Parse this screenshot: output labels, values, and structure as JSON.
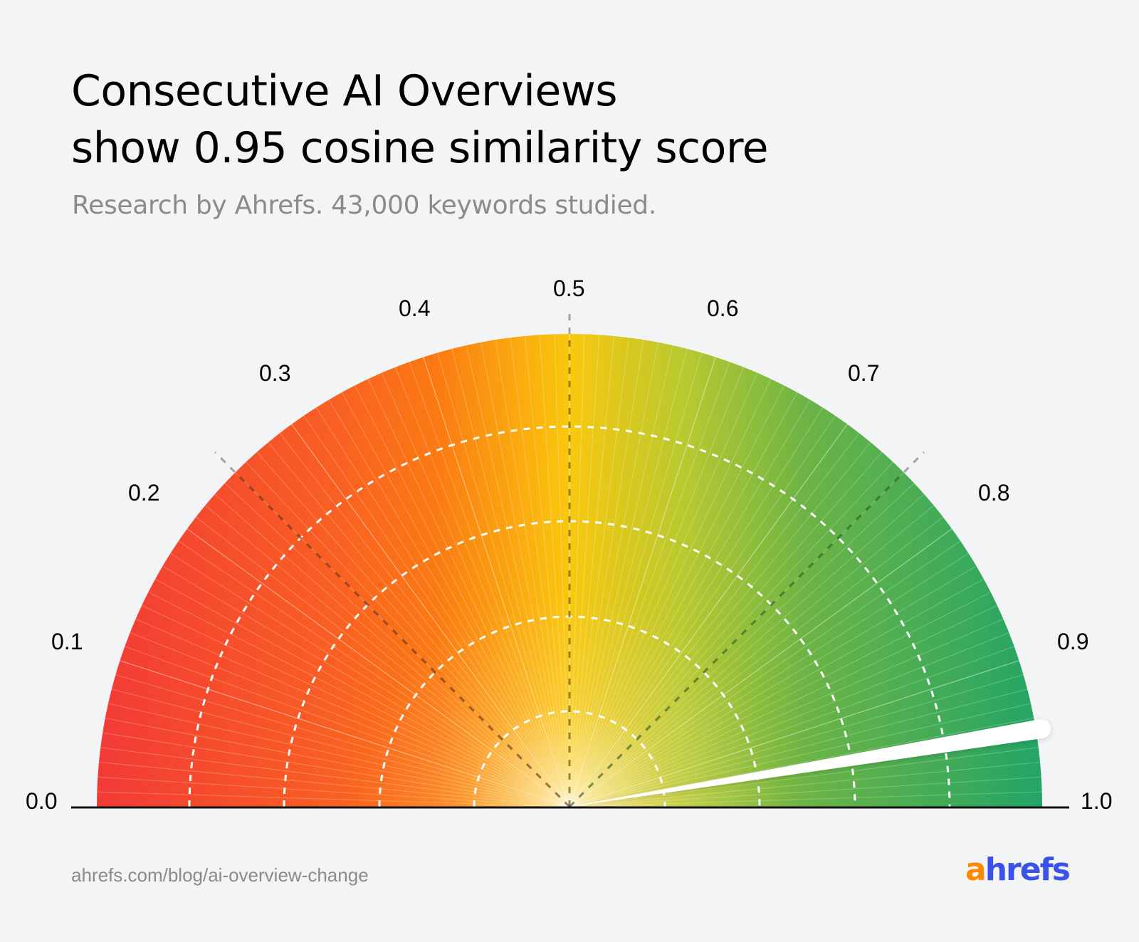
{
  "header": {
    "title_line1": "Consecutive AI Overviews",
    "title_line2": "show 0.95 cosine similarity score",
    "subtitle": "Research by Ahrefs. 43,000 keywords studied."
  },
  "footer": {
    "url": "ahrefs.com/blog/ai-overview-change",
    "logo_first": "a",
    "logo_rest": "hrefs"
  },
  "colors": {
    "background": "#f3f4f6",
    "gauge_start": "#f23a36",
    "gauge_orange": "#fb7a12",
    "gauge_yellow": "#f9c80e",
    "gauge_lime": "#8fc13c",
    "gauge_end": "#22a566",
    "needle": "#ffffff",
    "logo_orange": "#ff8800",
    "logo_blue": "#3b52e8"
  },
  "chart_data": {
    "type": "gauge",
    "title": "Consecutive AI Overviews show 0.95 cosine similarity score",
    "subtitle": "Research by Ahrefs. 43,000 keywords studied.",
    "min": 0.0,
    "max": 1.0,
    "value": 0.95,
    "tick_labels": [
      "0.0",
      "0.1",
      "0.2",
      "0.3",
      "0.4",
      "0.5",
      "0.6",
      "0.7",
      "0.8",
      "0.9",
      "1.0"
    ],
    "ticks": [
      0.0,
      0.1,
      0.2,
      0.3,
      0.4,
      0.5,
      0.6,
      0.7,
      0.8,
      0.9,
      1.0
    ],
    "color_scale": [
      "red",
      "orange",
      "yellow",
      "green"
    ],
    "reference_lines": [
      0.25,
      0.5,
      0.75
    ]
  }
}
